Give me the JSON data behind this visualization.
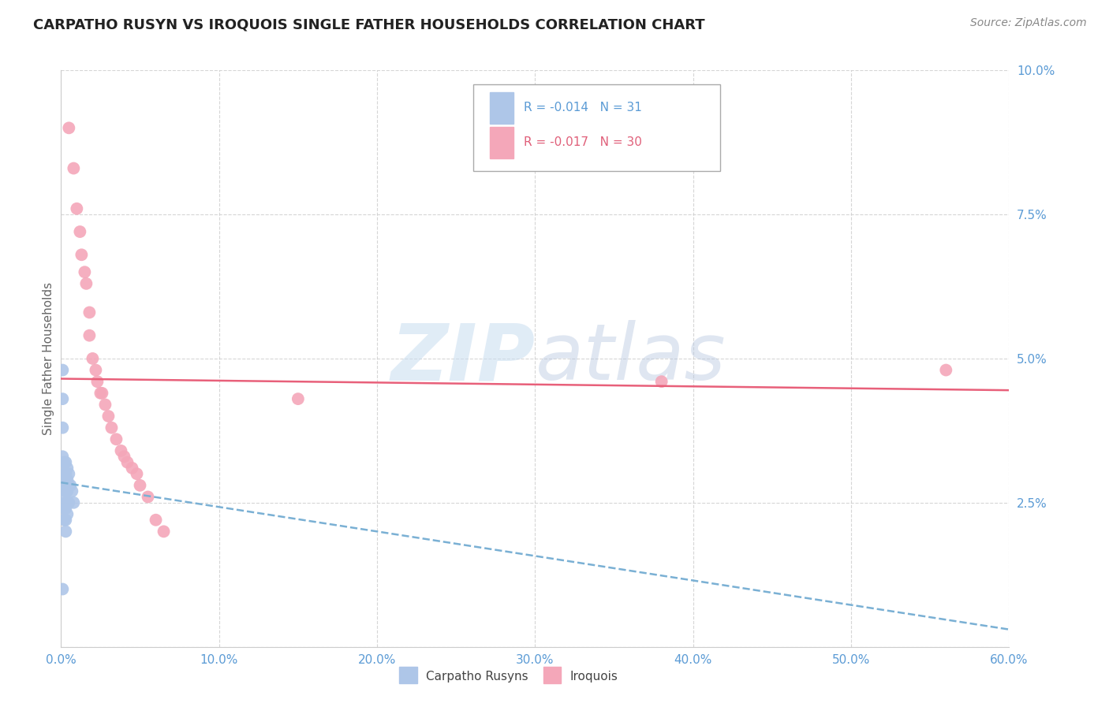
{
  "title": "CARPATHO RUSYN VS IROQUOIS SINGLE FATHER HOUSEHOLDS CORRELATION CHART",
  "source": "Source: ZipAtlas.com",
  "ylabel": "Single Father Households",
  "legend_labels": [
    "Carpatho Rusyns",
    "Iroquois"
  ],
  "legend_r": [
    -0.014,
    -0.017
  ],
  "legend_n": [
    31,
    30
  ],
  "blue_color": "#aec6e8",
  "pink_color": "#f4a7b9",
  "blue_line_color": "#7ab0d4",
  "pink_line_color": "#e8607a",
  "watermark_zip": "ZIP",
  "watermark_atlas": "atlas",
  "xlim": [
    0.0,
    0.6
  ],
  "ylim": [
    0.0,
    0.1
  ],
  "xticks": [
    0.0,
    0.1,
    0.2,
    0.3,
    0.4,
    0.5,
    0.6
  ],
  "xtick_labels": [
    "0.0%",
    "10.0%",
    "20.0%",
    "30.0%",
    "40.0%",
    "50.0%",
    "60.0%"
  ],
  "yticks": [
    0.0,
    0.025,
    0.05,
    0.075,
    0.1
  ],
  "ytick_labels": [
    "",
    "2.5%",
    "5.0%",
    "7.5%",
    "10.0%"
  ],
  "blue_x": [
    0.001,
    0.001,
    0.001,
    0.001,
    0.001,
    0.002,
    0.002,
    0.002,
    0.002,
    0.002,
    0.002,
    0.003,
    0.003,
    0.003,
    0.003,
    0.003,
    0.003,
    0.003,
    0.003,
    0.004,
    0.004,
    0.004,
    0.004,
    0.004,
    0.005,
    0.005,
    0.005,
    0.006,
    0.007,
    0.008,
    0.001
  ],
  "blue_y": [
    0.048,
    0.043,
    0.038,
    0.033,
    0.028,
    0.032,
    0.03,
    0.028,
    0.026,
    0.024,
    0.022,
    0.032,
    0.03,
    0.028,
    0.027,
    0.025,
    0.024,
    0.022,
    0.02,
    0.031,
    0.029,
    0.027,
    0.025,
    0.023,
    0.03,
    0.028,
    0.025,
    0.028,
    0.027,
    0.025,
    0.01
  ],
  "pink_x": [
    0.005,
    0.008,
    0.01,
    0.012,
    0.013,
    0.015,
    0.016,
    0.018,
    0.018,
    0.02,
    0.022,
    0.023,
    0.025,
    0.026,
    0.028,
    0.03,
    0.032,
    0.035,
    0.038,
    0.04,
    0.042,
    0.045,
    0.048,
    0.05,
    0.055,
    0.06,
    0.065,
    0.15,
    0.38,
    0.56
  ],
  "pink_y": [
    0.09,
    0.083,
    0.076,
    0.072,
    0.068,
    0.065,
    0.063,
    0.058,
    0.054,
    0.05,
    0.048,
    0.046,
    0.044,
    0.044,
    0.042,
    0.04,
    0.038,
    0.036,
    0.034,
    0.033,
    0.032,
    0.031,
    0.03,
    0.028,
    0.026,
    0.022,
    0.02,
    0.043,
    0.046,
    0.048
  ],
  "blue_trend_x": [
    0.0,
    0.6
  ],
  "blue_trend_y": [
    0.0285,
    0.003
  ],
  "pink_trend_x": [
    0.0,
    0.6
  ],
  "pink_trend_y": [
    0.0465,
    0.0445
  ]
}
